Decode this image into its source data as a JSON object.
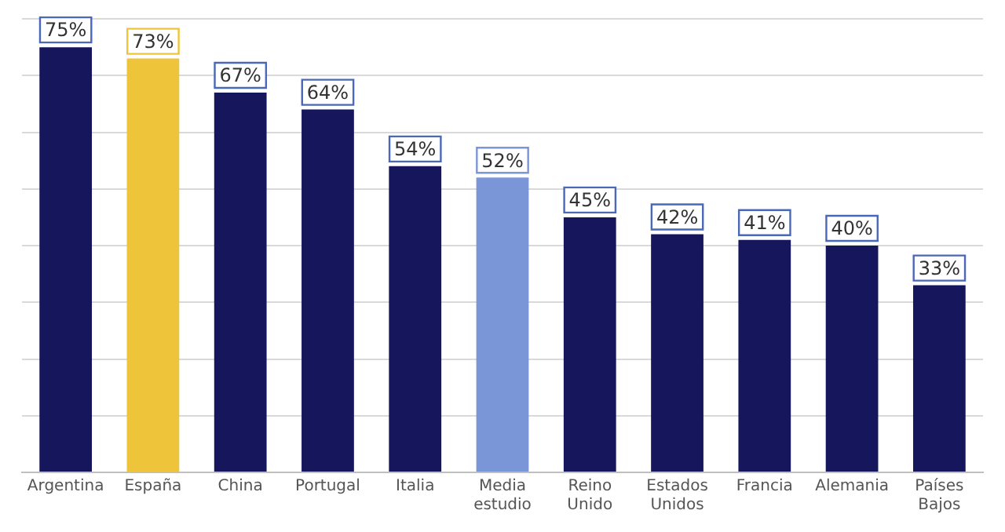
{
  "chart_data": {
    "type": "bar",
    "categories": [
      "Argentina",
      "España",
      "China",
      "Portugal",
      "Italia",
      "Media estudio",
      "Reino Unido",
      "Estados Unidos",
      "Francia",
      "Alemania",
      "Países Bajos"
    ],
    "values": [
      75,
      73,
      67,
      64,
      54,
      52,
      45,
      42,
      41,
      40,
      33
    ],
    "colors": [
      "#16165c",
      "#eec53a",
      "#16165c",
      "#16165c",
      "#16165c",
      "#7a96d6",
      "#16165c",
      "#16165c",
      "#16165c",
      "#16165c",
      "#16165c"
    ],
    "ylim": [
      0,
      80
    ],
    "yticks": [
      {
        "value": 0,
        "label": null
      },
      {
        "value": 10,
        "label": null
      },
      {
        "value": 20,
        "label": null
      },
      {
        "value": 30,
        "label": null
      },
      {
        "value": 40,
        "label": null
      },
      {
        "value": 50,
        "label": null
      },
      {
        "value": 60,
        "label": null
      },
      {
        "value": 70,
        "label": null
      },
      {
        "value": 80,
        "label": null
      }
    ],
    "value_labels": [
      "75%",
      "73%",
      "67%",
      "64%",
      "54%",
      "52%",
      "45%",
      "42%",
      "41%",
      "40%",
      "33%"
    ],
    "grid": "y",
    "tick_labels": "x",
    "legend": false
  }
}
